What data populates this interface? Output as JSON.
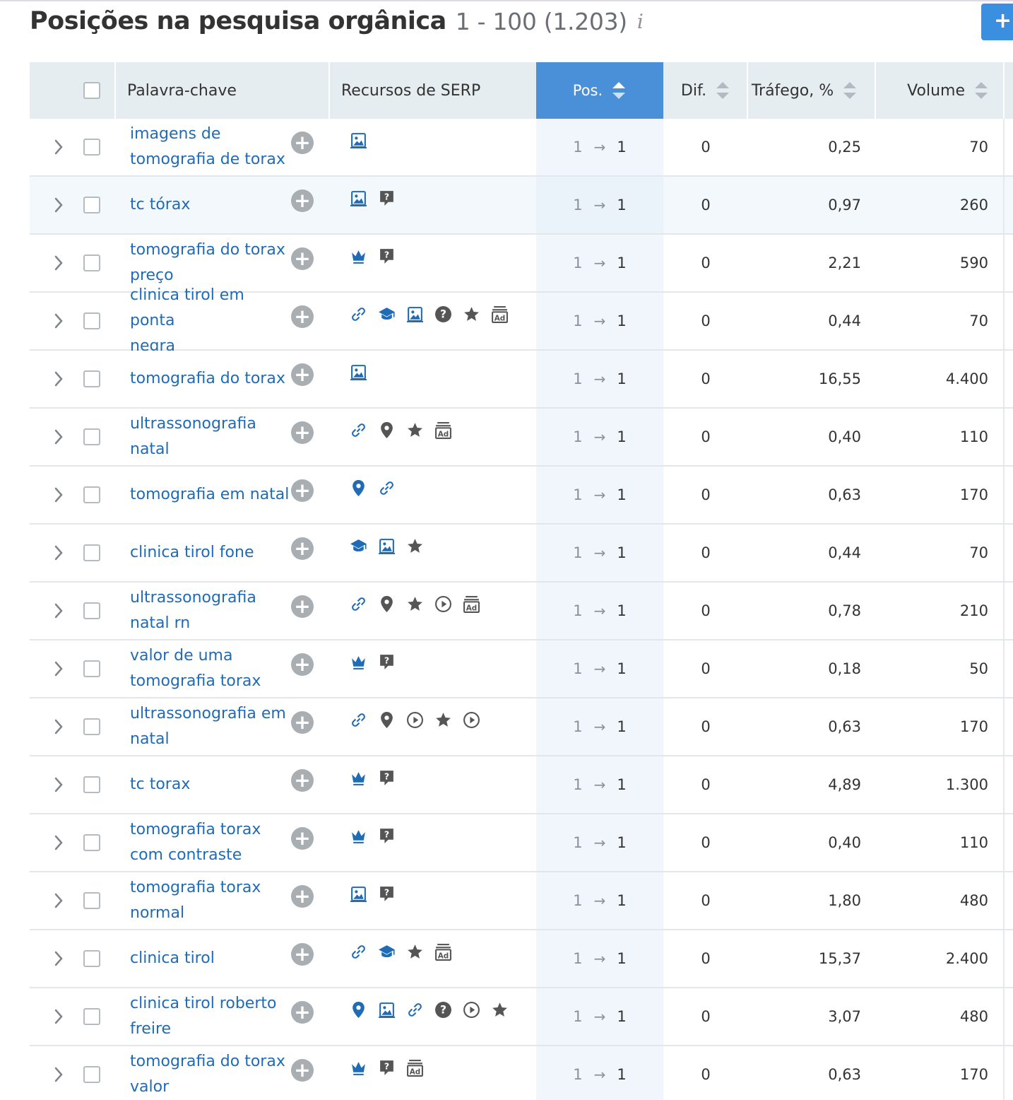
{
  "header": {
    "title": "Posições na pesquisa orgânica",
    "range": "1 - 100 (1.203)",
    "info_glyph": "i",
    "add_label": "+"
  },
  "columns": {
    "keyword": "Palavra-chave",
    "serp": "Recursos de SERP",
    "pos": "Pos.",
    "dif": "Dif.",
    "traffic": "Tráfego, %",
    "volume": "Volume"
  },
  "colors": {
    "link": "#1f6bb5",
    "accent": "#4a90d9",
    "icon_blue": "#1f6bb5",
    "icon_gray": "#666666"
  },
  "rows": [
    {
      "keyword": [
        "imagens de",
        "tomografia de torax"
      ],
      "serp": [
        "image"
      ],
      "from": "1",
      "to": "1",
      "dif": "0",
      "traffic": "0,25",
      "volume": "70"
    },
    {
      "keyword": [
        "tc tórax"
      ],
      "serp": [
        "image",
        "faq"
      ],
      "from": "1",
      "to": "1",
      "dif": "0",
      "traffic": "0,97",
      "volume": "260",
      "highlight": true
    },
    {
      "keyword": [
        "tomografia do torax",
        "preço"
      ],
      "serp": [
        "crown",
        "faq"
      ],
      "from": "1",
      "to": "1",
      "dif": "0",
      "traffic": "2,21",
      "volume": "590"
    },
    {
      "keyword": [
        "clinica tirol em ponta",
        "negra"
      ],
      "serp": [
        "link",
        "knowledge",
        "image",
        "question",
        "star",
        "ad"
      ],
      "from": "1",
      "to": "1",
      "dif": "0",
      "traffic": "0,44",
      "volume": "70"
    },
    {
      "keyword": [
        "tomografia do torax"
      ],
      "serp": [
        "image"
      ],
      "from": "1",
      "to": "1",
      "dif": "0",
      "traffic": "16,55",
      "volume": "4.400"
    },
    {
      "keyword": [
        "ultrassonografia",
        "natal"
      ],
      "serp": [
        "link",
        "pin",
        "star",
        "ad"
      ],
      "from": "1",
      "to": "1",
      "dif": "0",
      "traffic": "0,40",
      "volume": "110"
    },
    {
      "keyword": [
        "tomografia em natal"
      ],
      "serp": [
        "pin-blue",
        "link"
      ],
      "from": "1",
      "to": "1",
      "dif": "0",
      "traffic": "0,63",
      "volume": "170"
    },
    {
      "keyword": [
        "clinica tirol fone"
      ],
      "serp": [
        "knowledge",
        "image",
        "star"
      ],
      "from": "1",
      "to": "1",
      "dif": "0",
      "traffic": "0,44",
      "volume": "70"
    },
    {
      "keyword": [
        "ultrassonografia",
        "natal rn"
      ],
      "serp": [
        "link",
        "pin",
        "star",
        "video",
        "ad"
      ],
      "from": "1",
      "to": "1",
      "dif": "0",
      "traffic": "0,78",
      "volume": "210"
    },
    {
      "keyword": [
        "valor de uma",
        "tomografia torax"
      ],
      "serp": [
        "crown",
        "faq"
      ],
      "from": "1",
      "to": "1",
      "dif": "0",
      "traffic": "0,18",
      "volume": "50"
    },
    {
      "keyword": [
        "ultrassonografia em",
        "natal"
      ],
      "serp": [
        "link",
        "pin",
        "video",
        "star",
        "video"
      ],
      "from": "1",
      "to": "1",
      "dif": "0",
      "traffic": "0,63",
      "volume": "170"
    },
    {
      "keyword": [
        "tc torax"
      ],
      "serp": [
        "crown",
        "faq"
      ],
      "from": "1",
      "to": "1",
      "dif": "0",
      "traffic": "4,89",
      "volume": "1.300"
    },
    {
      "keyword": [
        "tomografia torax",
        "com contraste"
      ],
      "serp": [
        "crown",
        "faq"
      ],
      "from": "1",
      "to": "1",
      "dif": "0",
      "traffic": "0,40",
      "volume": "110"
    },
    {
      "keyword": [
        "tomografia torax",
        "normal"
      ],
      "serp": [
        "image",
        "faq"
      ],
      "from": "1",
      "to": "1",
      "dif": "0",
      "traffic": "1,80",
      "volume": "480"
    },
    {
      "keyword": [
        "clinica tirol"
      ],
      "serp": [
        "link",
        "knowledge",
        "star",
        "ad"
      ],
      "from": "1",
      "to": "1",
      "dif": "0",
      "traffic": "15,37",
      "volume": "2.400"
    },
    {
      "keyword": [
        "clinica tirol roberto",
        "freire"
      ],
      "serp": [
        "pin-blue",
        "image",
        "link",
        "question",
        "video",
        "star"
      ],
      "from": "1",
      "to": "1",
      "dif": "0",
      "traffic": "3,07",
      "volume": "480"
    },
    {
      "keyword": [
        "tomografia do torax",
        "valor"
      ],
      "serp": [
        "crown",
        "faq",
        "ad"
      ],
      "from": "1",
      "to": "1",
      "dif": "0",
      "traffic": "0,63",
      "volume": "170"
    }
  ]
}
